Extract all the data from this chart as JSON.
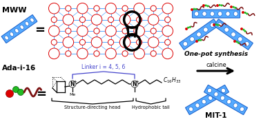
{
  "mww_label": "MWW",
  "ada_label": "Ada-i-16",
  "linker_label": "Linker i = 4, 5, 6",
  "sdh_label": "Structure-directing head",
  "ht_label": "Hydrophobic tail",
  "onepot_label": "One-pot synthesis",
  "calcine_label": "calcine",
  "mit1_label": "MIT-1",
  "blue": "#55aaff",
  "blue_dark": "#2266cc",
  "blue_light": "#aaddff",
  "red": "#dd0000",
  "green": "#22bb22",
  "dark_red": "#7a1010",
  "black": "#000000",
  "white": "#ffffff",
  "bg": "#ffffff"
}
